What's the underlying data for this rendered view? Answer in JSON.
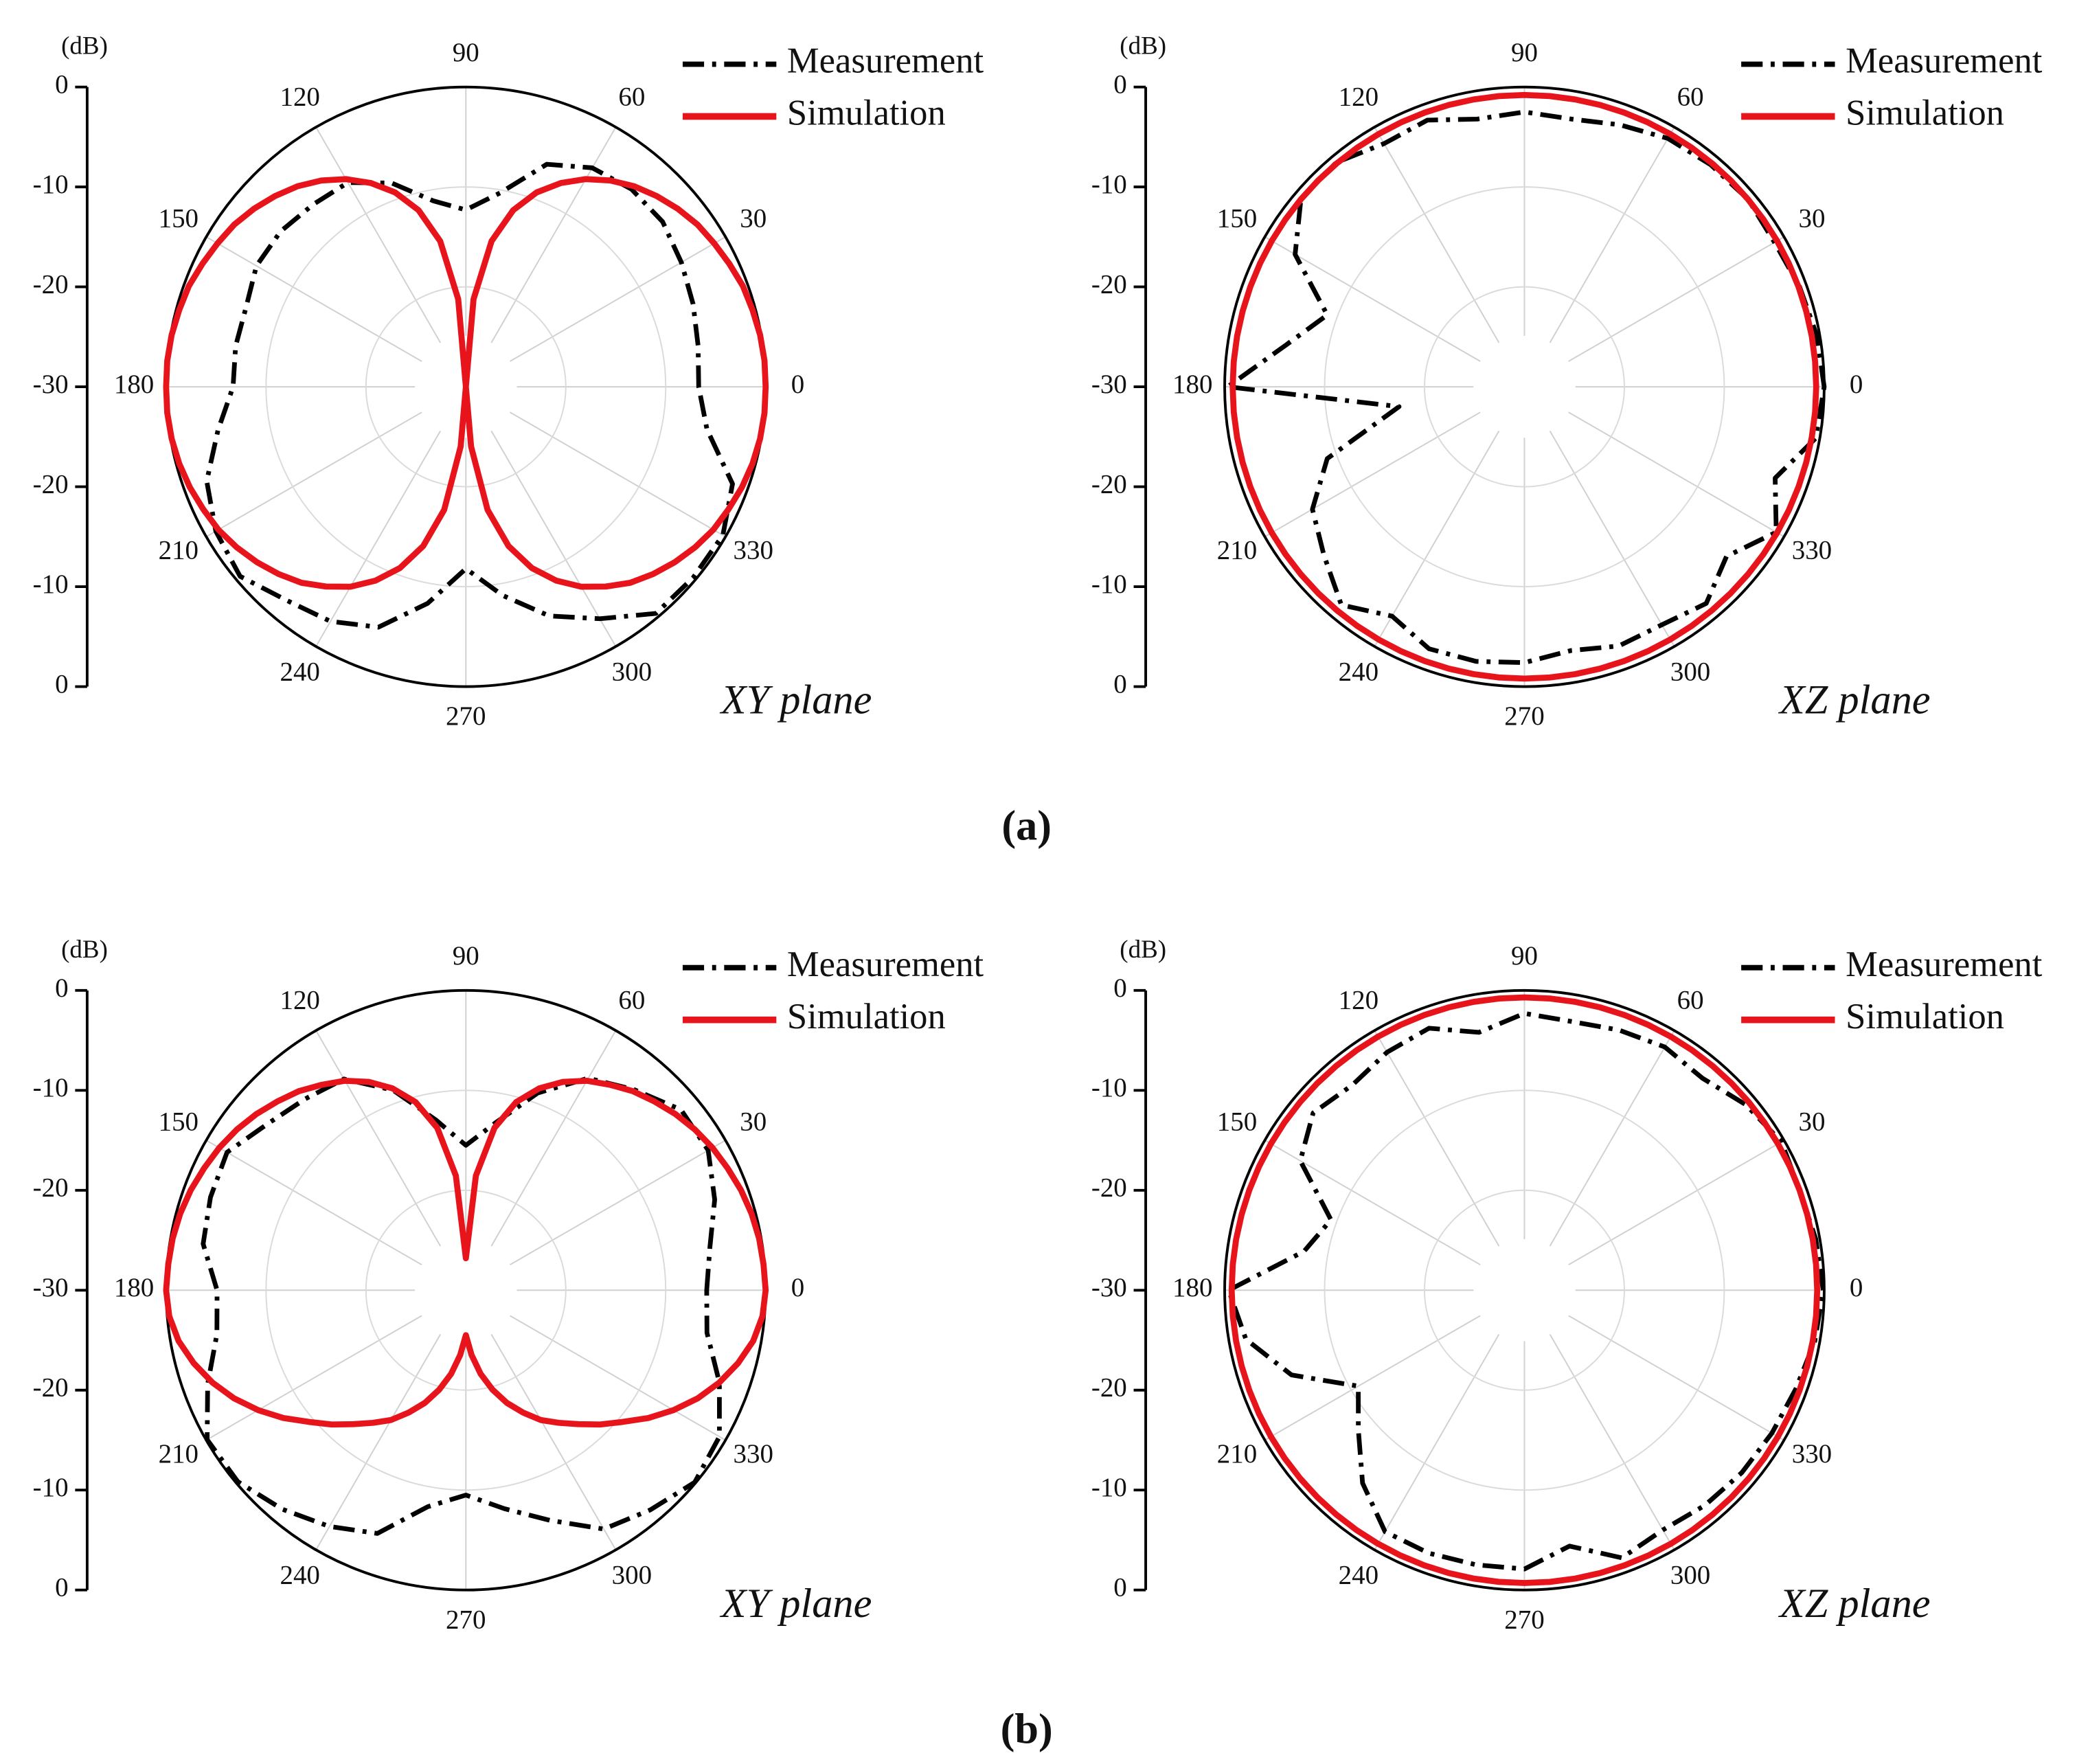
{
  "chart_data": [
    {
      "type": "polar",
      "radial_label": "(dB)",
      "annotation": "XY plane",
      "rlim": [
        -30,
        0
      ],
      "rticks": [
        0,
        -10,
        -20,
        -30
      ],
      "thetaticks": [
        0,
        30,
        60,
        90,
        120,
        150,
        180,
        210,
        240,
        270,
        300,
        330
      ],
      "series": [
        {
          "name": "Measurement",
          "color": "#000000",
          "line_style": "dashdot",
          "theta": [
            0,
            10,
            20,
            30,
            40,
            50,
            60,
            70,
            80,
            90,
            100,
            110,
            120,
            130,
            140,
            150,
            160,
            170,
            180,
            190,
            200,
            210,
            220,
            230,
            240,
            250,
            260,
            270,
            280,
            290,
            300,
            310,
            320,
            330,
            340,
            350
          ],
          "values": [
            -6.7,
            -6.4,
            -5.8,
            -5.1,
            -4.3,
            -4.2,
            -4.7,
            -6.3,
            -10.3,
            -12.3,
            -11.1,
            -8.3,
            -6.4,
            -6.2,
            -5.8,
            -5.8,
            -6.6,
            -6.6,
            -6.7,
            -4.8,
            -2.4,
            -1.1,
            -0.5,
            -2.1,
            -2.9,
            -4.4,
            -8,
            -11.8,
            -8.8,
            -5.6,
            -3.2,
            -0.4,
            -0.3,
            -0.3,
            -1.6,
            -5.5
          ]
        },
        {
          "name": "Simulation",
          "color": "#e8141b",
          "line_style": "solid",
          "theta": [
            0,
            5,
            10,
            15,
            20,
            25,
            30,
            35,
            40,
            45,
            50,
            55,
            60,
            65,
            70,
            75,
            80,
            85,
            90,
            95,
            100,
            105,
            110,
            115,
            120,
            125,
            130,
            135,
            140,
            145,
            150,
            155,
            160,
            165,
            170,
            175,
            180,
            185,
            190,
            195,
            200,
            205,
            210,
            215,
            220,
            225,
            230,
            235,
            240,
            245,
            250,
            255,
            260,
            265,
            270,
            275,
            280,
            285,
            290,
            295,
            300,
            305,
            310,
            315,
            320,
            325,
            330,
            335,
            340,
            345,
            350,
            355
          ],
          "values": [
            0,
            0,
            -0.1,
            -0.3,
            -0.5,
            -0.9,
            -1.3,
            -1.7,
            -2.3,
            -3,
            -3.8,
            -4.8,
            -6,
            -7.5,
            -9.3,
            -11.7,
            -15.2,
            -21.2,
            -30,
            -21.2,
            -15.2,
            -11.7,
            -9.3,
            -7.5,
            -6,
            -4.8,
            -3.8,
            -3,
            -2.3,
            -1.7,
            -1.3,
            -0.9,
            -0.5,
            -0.3,
            -0.1,
            0,
            0,
            0,
            -0.1,
            -0.3,
            -0.6,
            -1,
            -1.4,
            -2,
            -2.7,
            -3.5,
            -4.4,
            -5.6,
            -6.9,
            -8.6,
            -10.7,
            -13.5,
            -17.5,
            -24,
            -30,
            -24,
            -17.5,
            -13.5,
            -10.7,
            -8.6,
            -6.9,
            -5.6,
            -4.4,
            -3.5,
            -2.7,
            -2,
            -1.4,
            -1,
            -0.6,
            -0.3,
            -0.1,
            0
          ]
        }
      ]
    },
    {
      "type": "polar",
      "radial_label": "(dB)",
      "annotation": "XZ plane",
      "rlim": [
        -30,
        0
      ],
      "rticks": [
        0,
        -10,
        -20,
        -30
      ],
      "thetaticks": [
        0,
        30,
        60,
        90,
        120,
        150,
        180,
        210,
        240,
        270,
        300,
        330
      ],
      "series": [
        {
          "name": "Measurement",
          "color": "#000000",
          "line_style": "dashdot",
          "theta": [
            0,
            10,
            20,
            30,
            40,
            50,
            60,
            70,
            80,
            90,
            100,
            110,
            120,
            130,
            140,
            150,
            160,
            170,
            180,
            189,
            200,
            210,
            220,
            230,
            240,
            250,
            260,
            270,
            280,
            290,
            300,
            310,
            320,
            330,
            340,
            350
          ],
          "values": [
            0,
            -0.3,
            -0.7,
            -1.1,
            -0.8,
            -1,
            -1.3,
            -2.1,
            -2.8,
            -2.5,
            -2.8,
            -1.6,
            -1.9,
            -0.7,
            -0.8,
            -3.5,
            -9,
            -5.8,
            -0.3,
            -17.3,
            -9,
            -5.5,
            -3.8,
            -1.5,
            -3.5,
            -2.1,
            -2.1,
            -2.4,
            -3.2,
            -2.4,
            -2.5,
            -1.7,
            -3.6,
            -0.9,
            -3.3,
            -0.4
          ]
        },
        {
          "name": "Simulation",
          "color": "#e8141b",
          "line_style": "solid",
          "theta": [
            0,
            5,
            10,
            15,
            20,
            25,
            30,
            35,
            40,
            45,
            50,
            55,
            60,
            65,
            70,
            75,
            80,
            85,
            90,
            95,
            100,
            105,
            110,
            115,
            120,
            125,
            130,
            135,
            140,
            145,
            150,
            155,
            160,
            165,
            170,
            175,
            180,
            185,
            190,
            195,
            200,
            205,
            210,
            215,
            220,
            225,
            230,
            235,
            240,
            245,
            250,
            255,
            260,
            265,
            270,
            275,
            280,
            285,
            290,
            295,
            300,
            305,
            310,
            315,
            320,
            325,
            330,
            335,
            340,
            345,
            350,
            355
          ],
          "values": [
            -0.8,
            -0.8,
            -0.8,
            -0.8,
            -0.8,
            -0.8,
            -0.8,
            -0.8,
            -0.8,
            -0.8,
            -0.8,
            -0.8,
            -0.8,
            -0.8,
            -0.8,
            -0.8,
            -0.8,
            -0.8,
            -0.8,
            -0.8,
            -0.8,
            -0.8,
            -0.8,
            -0.8,
            -0.8,
            -0.8,
            -0.8,
            -0.8,
            -0.8,
            -0.8,
            -0.8,
            -0.8,
            -0.8,
            -0.8,
            -0.8,
            -0.8,
            -0.8,
            -0.8,
            -0.8,
            -0.8,
            -0.8,
            -0.8,
            -0.8,
            -0.8,
            -0.8,
            -0.8,
            -0.8,
            -0.8,
            -0.8,
            -0.8,
            -0.8,
            -0.8,
            -0.8,
            -0.8,
            -0.8,
            -0.8,
            -0.8,
            -0.8,
            -0.8,
            -0.8,
            -0.8,
            -0.8,
            -0.8,
            -0.8,
            -0.8,
            -0.8,
            -0.8,
            -0.8,
            -0.8,
            -0.8,
            -0.8,
            -0.8
          ]
        }
      ]
    },
    {
      "type": "polar",
      "radial_label": "(dB)",
      "annotation": "XY plane",
      "rlim": [
        -30,
        0
      ],
      "rticks": [
        0,
        -10,
        -20,
        -30
      ],
      "thetaticks": [
        0,
        30,
        60,
        90,
        120,
        150,
        180,
        210,
        240,
        270,
        300,
        330
      ],
      "series": [
        {
          "name": "Measurement",
          "color": "#000000",
          "line_style": "dashdot",
          "theta": [
            0,
            10,
            20,
            30,
            40,
            50,
            60,
            70,
            80,
            90,
            100,
            110,
            120,
            130,
            140,
            150,
            160,
            170,
            180,
            190,
            200,
            210,
            220,
            230,
            240,
            250,
            260,
            270,
            280,
            290,
            300,
            310,
            320,
            330,
            340,
            350
          ],
          "values": [
            -5.9,
            -5.2,
            -3.5,
            -2,
            -1.9,
            -3.8,
            -5.5,
            -9,
            -13,
            -15.5,
            -12.7,
            -8.7,
            -5.6,
            -5,
            -4.1,
            -2.4,
            -2.8,
            -3.3,
            -5.1,
            -4.7,
            -2.5,
            -0.1,
            -0.2,
            -1.4,
            -2.7,
            -4.1,
            -8,
            -9.5,
            -7.8,
            -5.5,
            -2.4,
            -1.3,
            -0.1,
            -0.7,
            -3,
            -5.5
          ]
        },
        {
          "name": "Simulation",
          "color": "#e8141b",
          "line_style": "solid",
          "theta": [
            0,
            5,
            10,
            15,
            20,
            25,
            30,
            35,
            40,
            45,
            50,
            55,
            60,
            65,
            70,
            75,
            80,
            85,
            90,
            95,
            100,
            105,
            110,
            115,
            120,
            125,
            130,
            135,
            140,
            145,
            150,
            155,
            160,
            165,
            170,
            175,
            180,
            185,
            190,
            195,
            200,
            205,
            210,
            215,
            220,
            225,
            230,
            235,
            240,
            245,
            250,
            255,
            260,
            265,
            270,
            275,
            280,
            285,
            290,
            295,
            300,
            305,
            310,
            315,
            320,
            325,
            330,
            335,
            340,
            345,
            350,
            355
          ],
          "values": [
            0,
            -0.1,
            -0.2,
            -0.4,
            -0.7,
            -1.1,
            -1.5,
            -2,
            -2.6,
            -3.3,
            -4,
            -4.9,
            -5.8,
            -7,
            -8.5,
            -10.5,
            -13.5,
            -18.5,
            -26.8,
            -18.5,
            -13.5,
            -10.5,
            -8.5,
            -7,
            -5.8,
            -4.9,
            -4,
            -3.3,
            -2.6,
            -2,
            -1.5,
            -1.1,
            -0.7,
            -0.4,
            -0.2,
            -0.1,
            0,
            -0.2,
            -0.8,
            -1.8,
            -3,
            -4.4,
            -6,
            -7.7,
            -9.5,
            -11,
            -12.5,
            -13.8,
            -15,
            -16.5,
            -18,
            -19.7,
            -21.5,
            -23.5,
            -25.5,
            -23.5,
            -21.5,
            -19.7,
            -18,
            -16.5,
            -15,
            -13.8,
            -12.5,
            -11,
            -9.5,
            -7.7,
            -6,
            -4.4,
            -3,
            -1.8,
            -0.8,
            -0.2
          ]
        }
      ]
    },
    {
      "type": "polar",
      "radial_label": "(dB)",
      "annotation": "XZ plane",
      "rlim": [
        -30,
        0
      ],
      "rticks": [
        0,
        -10,
        -20,
        -30
      ],
      "thetaticks": [
        0,
        30,
        60,
        90,
        120,
        150,
        180,
        210,
        240,
        270,
        300,
        330
      ],
      "series": [
        {
          "name": "Measurement",
          "color": "#000000",
          "line_style": "dashdot",
          "theta": [
            0,
            10,
            20,
            30,
            40,
            50,
            60,
            70,
            80,
            90,
            100,
            110,
            120,
            130,
            140,
            150,
            160,
            170,
            180,
            190,
            200,
            210,
            220,
            230,
            240,
            250,
            260,
            270,
            280,
            290,
            300,
            310,
            320,
            330,
            340,
            350
          ],
          "values": [
            -0.1,
            -0.4,
            -0.7,
            -0.3,
            -1.1,
            -2.3,
            -1.9,
            -2.3,
            -2.7,
            -2.3,
            -3.8,
            -2.1,
            -2.5,
            -3.2,
            -2.4,
            -4.1,
            -9.4,
            -7.6,
            -0.4,
            -1.7,
            -5.2,
            -10.8,
            -8.3,
            -4.8,
            -2.1,
            -2,
            -2.1,
            -2.1,
            -4,
            -1.5,
            -2.3,
            -1.9,
            -1.6,
            -1.4,
            -1.1,
            -0.5
          ]
        },
        {
          "name": "Simulation",
          "color": "#e8141b",
          "line_style": "solid",
          "theta": [
            0,
            5,
            10,
            15,
            20,
            25,
            30,
            35,
            40,
            45,
            50,
            55,
            60,
            65,
            70,
            75,
            80,
            85,
            90,
            95,
            100,
            105,
            110,
            115,
            120,
            125,
            130,
            135,
            140,
            145,
            150,
            155,
            160,
            165,
            170,
            175,
            180,
            185,
            190,
            195,
            200,
            205,
            210,
            215,
            220,
            225,
            230,
            235,
            240,
            245,
            250,
            255,
            260,
            265,
            270,
            275,
            280,
            285,
            290,
            295,
            300,
            305,
            310,
            315,
            320,
            325,
            330,
            335,
            340,
            345,
            350,
            355
          ],
          "values": [
            -0.7,
            -0.7,
            -0.7,
            -0.7,
            -0.7,
            -0.7,
            -0.7,
            -0.7,
            -0.7,
            -0.7,
            -0.7,
            -0.7,
            -0.7,
            -0.7,
            -0.7,
            -0.7,
            -0.7,
            -0.7,
            -0.7,
            -0.7,
            -0.7,
            -0.7,
            -0.7,
            -0.7,
            -0.7,
            -0.7,
            -0.7,
            -0.7,
            -0.7,
            -0.7,
            -0.7,
            -0.7,
            -0.7,
            -0.7,
            -0.7,
            -0.7,
            -0.7,
            -0.7,
            -0.7,
            -0.7,
            -0.7,
            -0.7,
            -0.7,
            -0.7,
            -0.7,
            -0.7,
            -0.7,
            -0.7,
            -0.7,
            -0.7,
            -0.7,
            -0.7,
            -0.7,
            -0.7,
            -0.7,
            -0.7,
            -0.7,
            -0.7,
            -0.7,
            -0.7,
            -0.7,
            -0.7,
            -0.7,
            -0.7,
            -0.7,
            -0.7,
            -0.7,
            -0.7,
            -0.7,
            -0.7,
            -0.7,
            -0.7
          ]
        }
      ]
    }
  ],
  "captions": [
    "(a)",
    "(b)"
  ]
}
